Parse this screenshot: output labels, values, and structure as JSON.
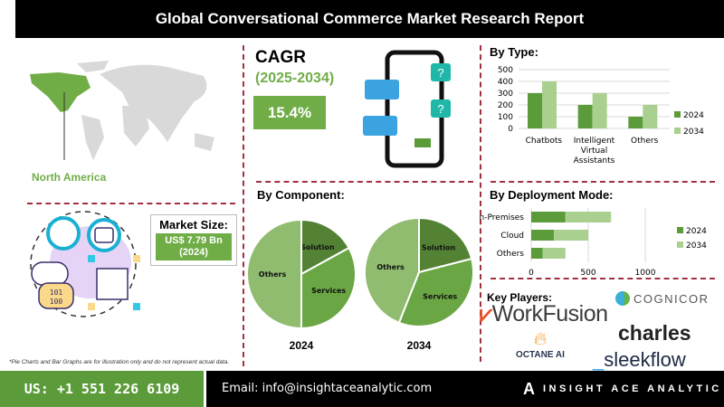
{
  "header": {
    "title": "Global Conversational Commerce Market Research Report"
  },
  "region": {
    "label": "North America",
    "highlight_color": "#70ad47"
  },
  "cagr": {
    "label": "CAGR",
    "period": "(2025-2034)",
    "value": "15.4%"
  },
  "market_size": {
    "label": "Market Size:",
    "value": "US$ 7.79 Bn",
    "year": "(2024)"
  },
  "component": {
    "title": "By Component:"
  },
  "type": {
    "title": "By Type:"
  },
  "deployment": {
    "title": "By Deployment Mode:"
  },
  "chart_data": [
    {
      "type": "bar",
      "title": "By Type:",
      "categories": [
        "Chatbots",
        "Intelligent Virtual Assistants",
        "Others"
      ],
      "series": [
        {
          "name": "2024",
          "values": [
            300,
            200,
            100
          ],
          "color": "#5b9b3a"
        },
        {
          "name": "2034",
          "values": [
            400,
            300,
            200
          ],
          "color": "#a9d08e"
        }
      ],
      "ylim": [
        0,
        500
      ],
      "yticks": [
        "0",
        "100",
        "200",
        "300",
        "400",
        "500"
      ],
      "grid": true,
      "legend": "right"
    },
    {
      "type": "bar",
      "orientation": "horizontal",
      "stacked": true,
      "title": "By Deployment Mode:",
      "categories": [
        "On-Premises",
        "Cloud",
        "Others"
      ],
      "series": [
        {
          "name": "2024",
          "values": [
            300,
            200,
            100
          ],
          "color": "#5b9b3a"
        },
        {
          "name": "2034",
          "values": [
            400,
            300,
            200
          ],
          "color": "#a9d08e"
        }
      ],
      "xlim": [
        0,
        1000
      ],
      "xticks": [
        "0",
        "500",
        "1000"
      ],
      "grid": true,
      "legend": "right"
    },
    {
      "type": "pie",
      "title": "2024",
      "slices": [
        {
          "label": "Solution",
          "value": 17,
          "color": "#548235"
        },
        {
          "label": "Services",
          "value": 33,
          "color": "#6aa644"
        },
        {
          "label": "Others",
          "value": 50,
          "color": "#8fbc6f"
        }
      ]
    },
    {
      "type": "pie",
      "title": "2034",
      "slices": [
        {
          "label": "Solution",
          "value": 21,
          "color": "#548235"
        },
        {
          "label": "Services",
          "value": 35,
          "color": "#6aa644"
        },
        {
          "label": "Others",
          "value": 44,
          "color": "#8fbc6f"
        }
      ]
    }
  ],
  "key_players": {
    "title": "Key Players:",
    "companies": [
      "WorkFusion",
      "COGNICOR",
      "OCTANE AI",
      "charles",
      "sleekflow"
    ]
  },
  "disclaimer": "*Pie Charts and Bar Graphs are for illustration only and do not represent actual data.",
  "footer": {
    "phone": "US: +1 551 226 6109",
    "email": "Email: info@insightaceanalytic.com",
    "brand": "INSIGHT ACE ANALYTIC"
  }
}
